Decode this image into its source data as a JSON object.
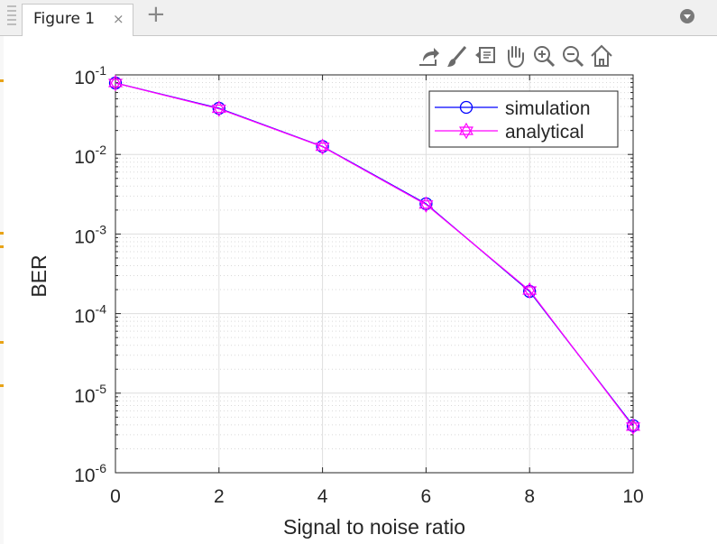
{
  "window": {
    "tab_label": "Figure 1",
    "close_glyph": "×",
    "add_glyph": "+",
    "icons": [
      "grip-icon",
      "close-icon",
      "add-tab-icon",
      "menu-icon"
    ]
  },
  "toolbar": {
    "icons": [
      "export-icon",
      "brush-icon",
      "datatip-icon",
      "pan-icon",
      "zoom-in-icon",
      "zoom-out-icon",
      "home-icon"
    ]
  },
  "chart_data": {
    "type": "line",
    "title": "",
    "xlabel": "Signal to noise ratio",
    "ylabel": "BER",
    "x": [
      0,
      2,
      4,
      6,
      8,
      10
    ],
    "xlim": [
      0,
      10
    ],
    "ylim": [
      1e-06,
      0.1
    ],
    "yscale": "log",
    "x_ticks": [
      "0",
      "2",
      "4",
      "6",
      "8",
      "10"
    ],
    "y_ticks": [
      {
        "base": "10",
        "exp": "-1",
        "value": 0.1
      },
      {
        "base": "10",
        "exp": "-2",
        "value": 0.01
      },
      {
        "base": "10",
        "exp": "-3",
        "value": 0.001
      },
      {
        "base": "10",
        "exp": "-4",
        "value": 0.0001
      },
      {
        "base": "10",
        "exp": "-5",
        "value": 1e-05
      },
      {
        "base": "10",
        "exp": "-6",
        "value": 1e-06
      }
    ],
    "grid": true,
    "minor_grid": true,
    "legend_position": "top-right",
    "series": [
      {
        "name": "simulation",
        "color": "#0000ff",
        "marker": "circle",
        "values": [
          0.079,
          0.038,
          0.0126,
          0.0024,
          0.00019,
          3.9e-06
        ]
      },
      {
        "name": "analytical",
        "color": "#ff00ff",
        "marker": "hexagram",
        "values": [
          0.079,
          0.0375,
          0.0125,
          0.00235,
          0.000195,
          3.8e-06
        ]
      }
    ]
  }
}
